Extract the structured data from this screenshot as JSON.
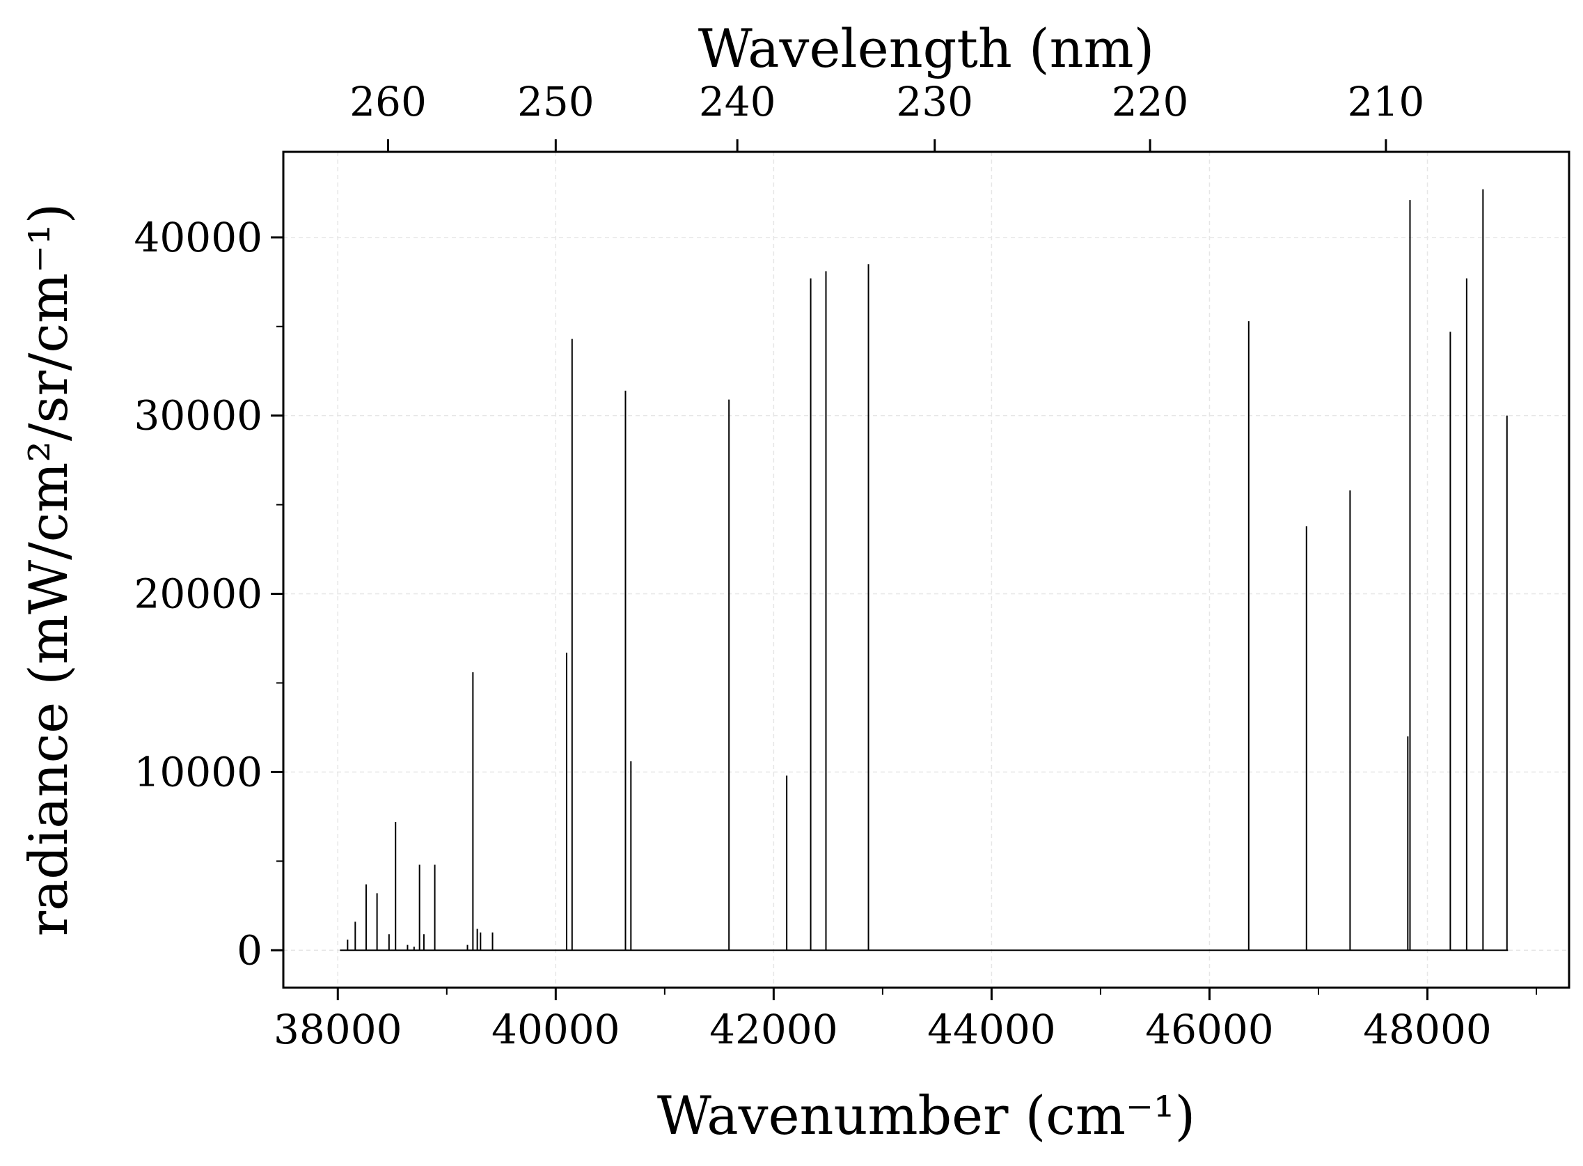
{
  "chart_data": {
    "type": "line",
    "title": "",
    "xlabel": "Wavenumber (cm⁻¹)",
    "ylabel": "radiance (mW/cm²/sr/cm⁻¹)",
    "top_xlabel": "Wavelength (nm)",
    "xlim": [
      37500,
      49300
    ],
    "ylim": [
      -2100,
      44800
    ],
    "x_ticks": [
      "38000",
      "40000",
      "42000",
      "44000",
      "46000",
      "48000"
    ],
    "y_ticks": [
      "0",
      "10000",
      "20000",
      "30000",
      "40000"
    ],
    "top_ticks": [
      "260",
      "250",
      "240",
      "230",
      "220",
      "210"
    ],
    "grid": true,
    "line_color": "#000000",
    "baseline_range": [
      38020,
      48740
    ],
    "series": [
      {
        "lines": [
          {
            "x": 38090,
            "y": 600
          },
          {
            "x": 38160,
            "y": 1600
          },
          {
            "x": 38260,
            "y": 3700
          },
          {
            "x": 38360,
            "y": 3200
          },
          {
            "x": 38470,
            "y": 900
          },
          {
            "x": 38530,
            "y": 7200
          },
          {
            "x": 38640,
            "y": 300
          },
          {
            "x": 38700,
            "y": 200
          },
          {
            "x": 38750,
            "y": 4800
          },
          {
            "x": 38790,
            "y": 900
          },
          {
            "x": 38890,
            "y": 4800
          },
          {
            "x": 39190,
            "y": 300
          },
          {
            "x": 39240,
            "y": 15600
          },
          {
            "x": 39280,
            "y": 1200
          },
          {
            "x": 39310,
            "y": 1000
          },
          {
            "x": 39420,
            "y": 1000
          },
          {
            "x": 40100,
            "y": 16700
          },
          {
            "x": 40150,
            "y": 34300
          },
          {
            "x": 40640,
            "y": 31400
          },
          {
            "x": 40690,
            "y": 10600
          },
          {
            "x": 41590,
            "y": 30900
          },
          {
            "x": 42120,
            "y": 9800
          },
          {
            "x": 42340,
            "y": 37700
          },
          {
            "x": 42480,
            "y": 38100
          },
          {
            "x": 42870,
            "y": 38500
          },
          {
            "x": 46360,
            "y": 35300
          },
          {
            "x": 46890,
            "y": 23800
          },
          {
            "x": 47290,
            "y": 25800
          },
          {
            "x": 47820,
            "y": 12000
          },
          {
            "x": 47840,
            "y": 42100
          },
          {
            "x": 48210,
            "y": 34700
          },
          {
            "x": 48360,
            "y": 37700
          },
          {
            "x": 48510,
            "y": 42700
          },
          {
            "x": 48730,
            "y": 30000
          }
        ]
      }
    ]
  }
}
